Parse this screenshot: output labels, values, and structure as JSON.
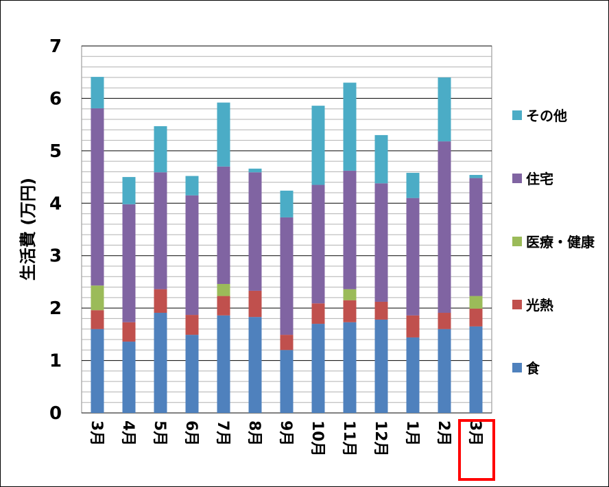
{
  "chart_data": {
    "type": "bar",
    "stacked": true,
    "title": "",
    "xlabel": "",
    "ylabel": "生活費 (万円)",
    "ylim": [
      0,
      7
    ],
    "yticks": [
      0,
      1,
      2,
      3,
      4,
      5,
      6,
      7
    ],
    "grid": true,
    "legend_position": "right",
    "categories": [
      "3月",
      "4月",
      "5月",
      "6月",
      "7月",
      "8月",
      "9月",
      "10月",
      "11月",
      "12月",
      "1月",
      "2月",
      "3月"
    ],
    "highlighted_category_index": 12,
    "highlight_color": "#FF0000",
    "series": [
      {
        "name": "食",
        "color": "#4F81BD",
        "values": [
          1.6,
          1.36,
          1.91,
          1.49,
          1.86,
          1.83,
          1.2,
          1.7,
          1.73,
          1.78,
          1.44,
          1.6,
          1.65
        ]
      },
      {
        "name": "光熱",
        "color": "#C0504D",
        "values": [
          0.36,
          0.37,
          0.45,
          0.38,
          0.37,
          0.5,
          0.29,
          0.39,
          0.42,
          0.34,
          0.42,
          0.31,
          0.34
        ]
      },
      {
        "name": "医療・健康",
        "color": "#9BBB59",
        "values": [
          0.47,
          0,
          0,
          0,
          0.23,
          0,
          0,
          0,
          0.21,
          0,
          0,
          0,
          0.24
        ]
      },
      {
        "name": "住宅",
        "color": "#8064A2",
        "values": [
          3.38,
          2.25,
          2.23,
          2.28,
          2.24,
          2.26,
          2.24,
          2.26,
          2.26,
          2.26,
          2.24,
          3.27,
          2.25
        ]
      },
      {
        "name": "その他",
        "color": "#4BACC6",
        "values": [
          0.6,
          0.52,
          0.88,
          0.37,
          1.22,
          0.07,
          0.51,
          1.51,
          1.68,
          0.92,
          0.48,
          1.22,
          0.06
        ]
      }
    ]
  }
}
